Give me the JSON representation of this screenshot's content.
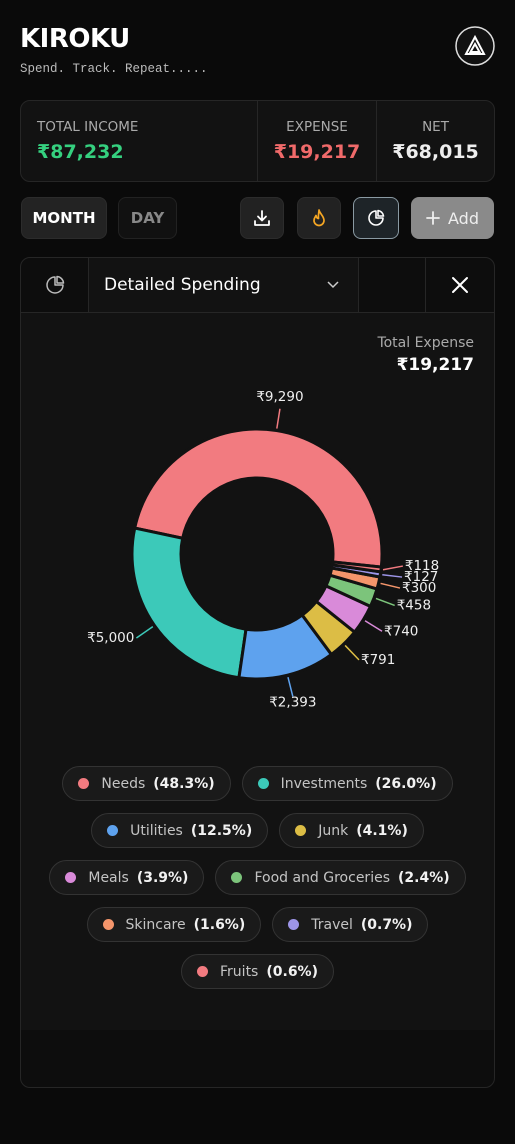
{
  "header": {
    "title": "KIROKU",
    "tagline": "Spend. Track. Repeat....."
  },
  "summary": [
    {
      "label": "TOTAL INCOME",
      "value": "₹87,232"
    },
    {
      "label": "EXPENSE",
      "value": "₹19,217"
    },
    {
      "label": "NET",
      "value": "₹68,015"
    }
  ],
  "toolbar": {
    "month": "MONTH",
    "day": "DAY",
    "add": "Add"
  },
  "panel": {
    "dropdown": "Detailed Spending",
    "total_label": "Total Expense",
    "total": "₹19,217"
  },
  "chart_data": {
    "type": "pie",
    "categories": [
      "Needs",
      "Investments",
      "Utilities",
      "Junk",
      "Meals",
      "Food and Groceries",
      "Skincare",
      "Travel",
      "Fruits"
    ],
    "values": [
      9290,
      5000,
      2393,
      791,
      740,
      458,
      300,
      127,
      118
    ],
    "value_labels": [
      "₹9,290",
      "₹5,000",
      "₹2,393",
      "₹791",
      "₹740",
      "₹458",
      "₹300",
      "₹127",
      "₹118"
    ],
    "percent_labels": [
      "(48.3%)",
      "(26.0%)",
      "(12.5%)",
      "(4.1%)",
      "(3.9%)",
      "(2.4%)",
      "(1.6%)",
      "(0.7%)",
      "(0.6%)"
    ],
    "colors": [
      "#f27b80",
      "#3cc9b9",
      "#5ea2ee",
      "#dcbd45",
      "#d98ad9",
      "#7cc47b",
      "#f4956b",
      "#9d95e8",
      "#f27b80"
    ]
  }
}
